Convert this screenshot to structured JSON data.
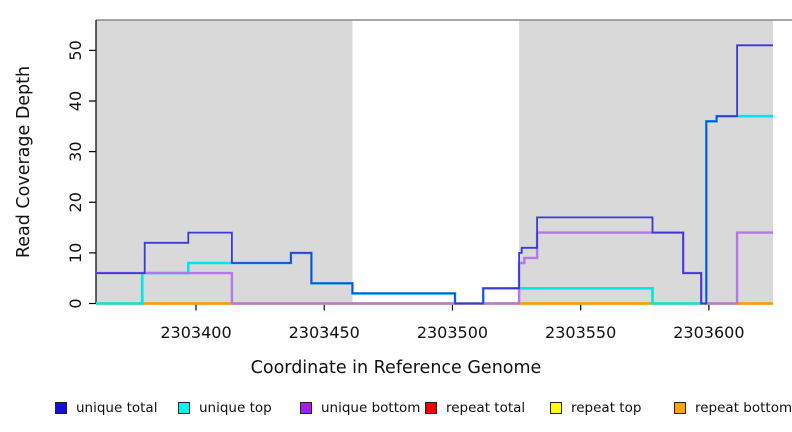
{
  "chart_data": {
    "type": "line",
    "style": "step-after",
    "title": "",
    "xlabel": "Coordinate in Reference Genome",
    "ylabel": "Read Coverage Depth",
    "xlim": [
      2303361,
      2303625
    ],
    "ylim": [
      0,
      56
    ],
    "x_ticks": [
      2303400,
      2303450,
      2303500,
      2303550,
      2303600
    ],
    "y_ticks": [
      0,
      10,
      20,
      30,
      40,
      50
    ],
    "grid": false,
    "legend_position": "bottom",
    "shaded_regions": [
      [
        2303361,
        2303461
      ],
      [
        2303526,
        2303625
      ]
    ],
    "colors": {
      "shaded_background": "#d9d9d9",
      "plot_background": "#ffffff",
      "top_border": "#8a8a8a",
      "axis": "#000000"
    },
    "draw_order": [
      4,
      3,
      5,
      1,
      2,
      0
    ],
    "series": [
      {
        "name": "unique total",
        "color": "#3a3ad9",
        "legend_color": "#1010d8",
        "line_width": 1.8,
        "points": [
          [
            2303361,
            6
          ],
          [
            2303380,
            12
          ],
          [
            2303397,
            14
          ],
          [
            2303414,
            8
          ],
          [
            2303437,
            10
          ],
          [
            2303445,
            4
          ],
          [
            2303461,
            2
          ],
          [
            2303501,
            0
          ],
          [
            2303512,
            3
          ],
          [
            2303526,
            10
          ],
          [
            2303527,
            11
          ],
          [
            2303533,
            17
          ],
          [
            2303578,
            14
          ],
          [
            2303590,
            6
          ],
          [
            2303597,
            0
          ],
          [
            2303599,
            36
          ],
          [
            2303603,
            37
          ],
          [
            2303611,
            51
          ],
          [
            2303625,
            51
          ]
        ]
      },
      {
        "name": "unique top",
        "color": "#00e5ee",
        "legend_color": "#00f5f5",
        "line_width": 2.6,
        "points": [
          [
            2303361,
            0
          ],
          [
            2303379,
            6
          ],
          [
            2303397,
            8
          ],
          [
            2303437,
            10
          ],
          [
            2303445,
            4
          ],
          [
            2303461,
            2
          ],
          [
            2303501,
            0
          ],
          [
            2303512,
            3
          ],
          [
            2303578,
            0
          ],
          [
            2303599,
            36
          ],
          [
            2303603,
            37
          ],
          [
            2303625,
            37
          ]
        ]
      },
      {
        "name": "unique bottom",
        "color": "#b678e8",
        "legend_color": "#a11ff0",
        "line_width": 2.4,
        "points": [
          [
            2303361,
            6
          ],
          [
            2303414,
            0
          ],
          [
            2303526,
            8
          ],
          [
            2303528,
            9
          ],
          [
            2303533,
            14
          ],
          [
            2303590,
            6
          ],
          [
            2303597,
            0
          ],
          [
            2303611,
            14
          ],
          [
            2303625,
            14
          ]
        ]
      },
      {
        "name": "repeat total",
        "color": "#e04050",
        "legend_color": "#f50000",
        "line_width": 2.2,
        "points": [
          [
            2303361,
            0
          ],
          [
            2303625,
            0
          ]
        ]
      },
      {
        "name": "repeat top",
        "color": "#ffff00",
        "legend_color": "#ffff00",
        "line_width": 2.8,
        "points": [
          [
            2303361,
            0
          ],
          [
            2303625,
            0
          ]
        ]
      },
      {
        "name": "repeat bottom",
        "color": "#ff9d00",
        "legend_color": "#ffa500",
        "line_width": 1.8,
        "points": [
          [
            2303361,
            0
          ],
          [
            2303625,
            0
          ]
        ]
      }
    ]
  }
}
